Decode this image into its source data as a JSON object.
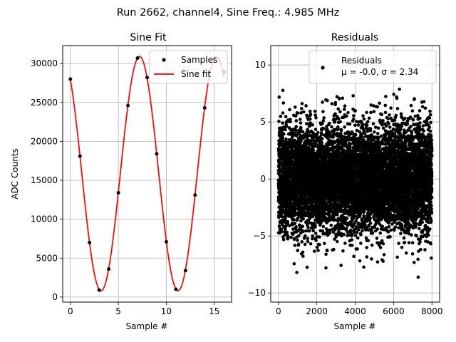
{
  "suptitle": "Run 2662, channel4, Sine Freq.: 4.985 MHz",
  "chart_data": [
    {
      "type": "line",
      "title": "Sine Fit",
      "xlabel": "Sample #",
      "ylabel": "ADC Counts",
      "xlim": [
        -0.8,
        16.8
      ],
      "ylim": [
        -650,
        32300
      ],
      "grid": true,
      "xticks": [
        0,
        5,
        10,
        15
      ],
      "yticks": [
        0,
        5000,
        10000,
        15000,
        20000,
        25000,
        30000
      ],
      "legend": {
        "position": "top-right",
        "entries": [
          "Samples",
          "Sine fit"
        ]
      },
      "series": [
        {
          "name": "Samples",
          "style": "points",
          "color": "#000000",
          "x": [
            0,
            1,
            2,
            3,
            4,
            5,
            6,
            7,
            8,
            9,
            10,
            11,
            12,
            13,
            14,
            15,
            16
          ],
          "y": [
            28000,
            18100,
            7000,
            900,
            3600,
            13400,
            24600,
            30700,
            28200,
            18400,
            7100,
            1000,
            3400,
            13100,
            24300,
            30700,
            28900
          ]
        },
        {
          "name": "Sine fit",
          "style": "line",
          "color": "#ff0000",
          "model": {
            "mean": 15850,
            "amplitude": 15050,
            "period": 8.0225,
            "phase_x": 7.21
          },
          "x_range": [
            0,
            16
          ]
        }
      ]
    },
    {
      "type": "scatter",
      "title": "Residuals",
      "xlabel": "Sample #",
      "xlim": [
        -400,
        8400
      ],
      "ylim": [
        -10.8,
        11.7
      ],
      "grid": true,
      "xticks": [
        0,
        2000,
        4000,
        6000,
        8000
      ],
      "yticks": [
        -10,
        -5,
        0,
        5,
        10
      ],
      "legend": {
        "position": "top-right",
        "entries": [
          "Residuals",
          "μ = -0.0, σ = 2.34"
        ]
      },
      "series": [
        {
          "name": "Residuals",
          "color": "#000000",
          "n_points": 8000,
          "x_range": [
            0,
            8000
          ],
          "mean": -0.0,
          "std": 2.34,
          "y_range_observed": [
            -10.0,
            10.6
          ]
        }
      ]
    }
  ]
}
